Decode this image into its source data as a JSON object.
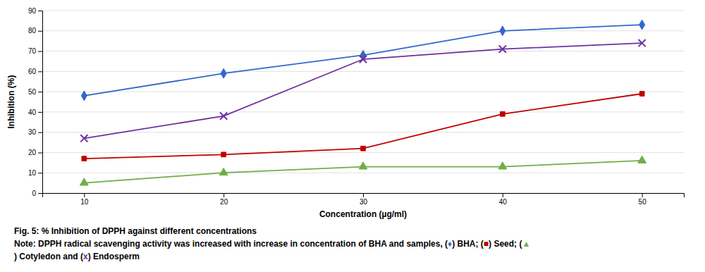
{
  "chart_data": {
    "type": "line",
    "x": [
      10,
      20,
      30,
      40,
      50
    ],
    "series": [
      {
        "color": "#3366CC",
        "marker": "diamond",
        "values": [
          48,
          59,
          68,
          80,
          83
        ]
      },
      {
        "color": "#7030A0",
        "marker": "x",
        "values": [
          27,
          38,
          66,
          71,
          74
        ]
      },
      {
        "color": "#C00000",
        "marker": "square",
        "values": [
          17,
          19,
          22,
          39,
          49
        ]
      },
      {
        "color": "#70AD47",
        "marker": "triangle",
        "values": [
          5,
          10,
          13,
          13,
          16
        ]
      }
    ],
    "xlabel": "Concentration (µg/ml)",
    "ylabel": "Inhibition (%)",
    "xlim": [
      7,
      53
    ],
    "xticks": [
      10,
      20,
      30,
      40,
      50
    ],
    "ylim": [
      0,
      90
    ],
    "yticks": [
      0,
      10,
      20,
      30,
      40,
      50,
      60,
      70,
      80,
      90
    ],
    "grid": "y",
    "annotations": [
      [
        {
          "text": "Fig. 5: % Inhibition of DPPH against different concentrations"
        }
      ],
      [
        {
          "text": "Note: DPPH radical scavenging activity was increased with increase in concentration of BHA and samples, ("
        },
        {
          "text": "♦",
          "color": "#3366CC"
        },
        {
          "text": ") BHA; ("
        },
        {
          "text": "■",
          "color": "#C00000"
        },
        {
          "text": ") Seed; ("
        },
        {
          "text": "▲",
          "color": "#70AD47"
        }
      ],
      [
        {
          "text": ") Cotyledon and ("
        },
        {
          "text": "x",
          "color": "#7030A0"
        },
        {
          "text": ") Endosperm"
        }
      ]
    ]
  }
}
